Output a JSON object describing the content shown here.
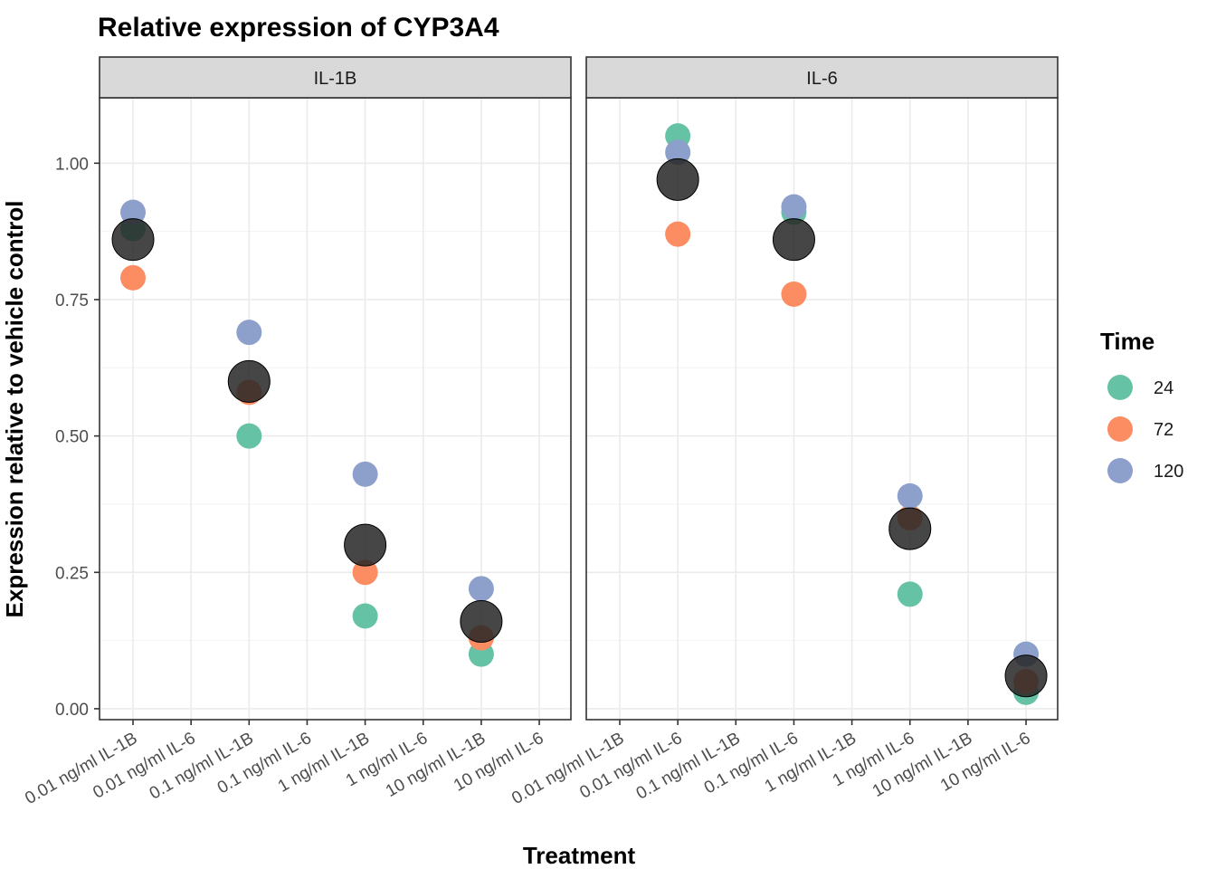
{
  "chart_data": {
    "type": "scatter",
    "title": "Relative expression of CYP3A4",
    "xlabel": "Treatment",
    "ylabel": "Expression relative to vehicle control",
    "ylim": [
      -0.02,
      1.12
    ],
    "y_ticks": [
      "0.00",
      "0.25",
      "0.50",
      "0.75",
      "1.00"
    ],
    "y_tick_values": [
      0,
      0.25,
      0.5,
      0.75,
      1.0
    ],
    "grid": true,
    "legend_position": "right",
    "categories": [
      "0.01 ng/ml IL-1B",
      "0.01 ng/ml IL-6",
      "0.1 ng/ml IL-1B",
      "0.1 ng/ml IL-6",
      "1 ng/ml IL-1B",
      "1 ng/ml IL-6",
      "10 ng/ml IL-1B",
      "10 ng/ml IL-6"
    ],
    "legend": {
      "title": "Time",
      "entries": [
        {
          "label": "24",
          "color": "#66c2a5"
        },
        {
          "label": "72",
          "color": "#fc8d62"
        },
        {
          "label": "120",
          "color": "#8da0cb"
        }
      ]
    },
    "mean_color": "#262626",
    "panels": [
      {
        "strip": "IL-1B",
        "series": [
          {
            "time": "24",
            "points": [
              {
                "x": "0.01 ng/ml IL-1B",
                "y": 0.88
              },
              {
                "x": "0.1 ng/ml IL-1B",
                "y": 0.5
              },
              {
                "x": "1 ng/ml IL-1B",
                "y": 0.17
              },
              {
                "x": "10 ng/ml IL-1B",
                "y": 0.1
              }
            ]
          },
          {
            "time": "72",
            "points": [
              {
                "x": "0.01 ng/ml IL-1B",
                "y": 0.79
              },
              {
                "x": "0.1 ng/ml IL-1B",
                "y": 0.58
              },
              {
                "x": "1 ng/ml IL-1B",
                "y": 0.25
              },
              {
                "x": "10 ng/ml IL-1B",
                "y": 0.13
              }
            ]
          },
          {
            "time": "120",
            "points": [
              {
                "x": "0.01 ng/ml IL-1B",
                "y": 0.91
              },
              {
                "x": "0.1 ng/ml IL-1B",
                "y": 0.69
              },
              {
                "x": "1 ng/ml IL-1B",
                "y": 0.43
              },
              {
                "x": "10 ng/ml IL-1B",
                "y": 0.22
              }
            ]
          }
        ],
        "means": [
          {
            "x": "0.01 ng/ml IL-1B",
            "y": 0.86
          },
          {
            "x": "0.1 ng/ml IL-1B",
            "y": 0.6
          },
          {
            "x": "1 ng/ml IL-1B",
            "y": 0.3
          },
          {
            "x": "10 ng/ml IL-1B",
            "y": 0.16
          }
        ]
      },
      {
        "strip": "IL-6",
        "series": [
          {
            "time": "24",
            "points": [
              {
                "x": "0.01 ng/ml IL-6",
                "y": 1.05
              },
              {
                "x": "0.1 ng/ml IL-6",
                "y": 0.91
              },
              {
                "x": "1 ng/ml IL-6",
                "y": 0.21
              },
              {
                "x": "10 ng/ml IL-6",
                "y": 0.03
              }
            ]
          },
          {
            "time": "72",
            "points": [
              {
                "x": "0.01 ng/ml IL-6",
                "y": 0.87
              },
              {
                "x": "0.1 ng/ml IL-6",
                "y": 0.76
              },
              {
                "x": "1 ng/ml IL-6",
                "y": 0.35
              },
              {
                "x": "10 ng/ml IL-6",
                "y": 0.05
              }
            ]
          },
          {
            "time": "120",
            "points": [
              {
                "x": "0.01 ng/ml IL-6",
                "y": 1.02
              },
              {
                "x": "0.1 ng/ml IL-6",
                "y": 0.92
              },
              {
                "x": "1 ng/ml IL-6",
                "y": 0.39
              },
              {
                "x": "10 ng/ml IL-6",
                "y": 0.1
              }
            ]
          }
        ],
        "means": [
          {
            "x": "0.01 ng/ml IL-6",
            "y": 0.97
          },
          {
            "x": "0.1 ng/ml IL-6",
            "y": 0.86
          },
          {
            "x": "1 ng/ml IL-6",
            "y": 0.33
          },
          {
            "x": "10 ng/ml IL-6",
            "y": 0.06
          }
        ]
      }
    ]
  }
}
